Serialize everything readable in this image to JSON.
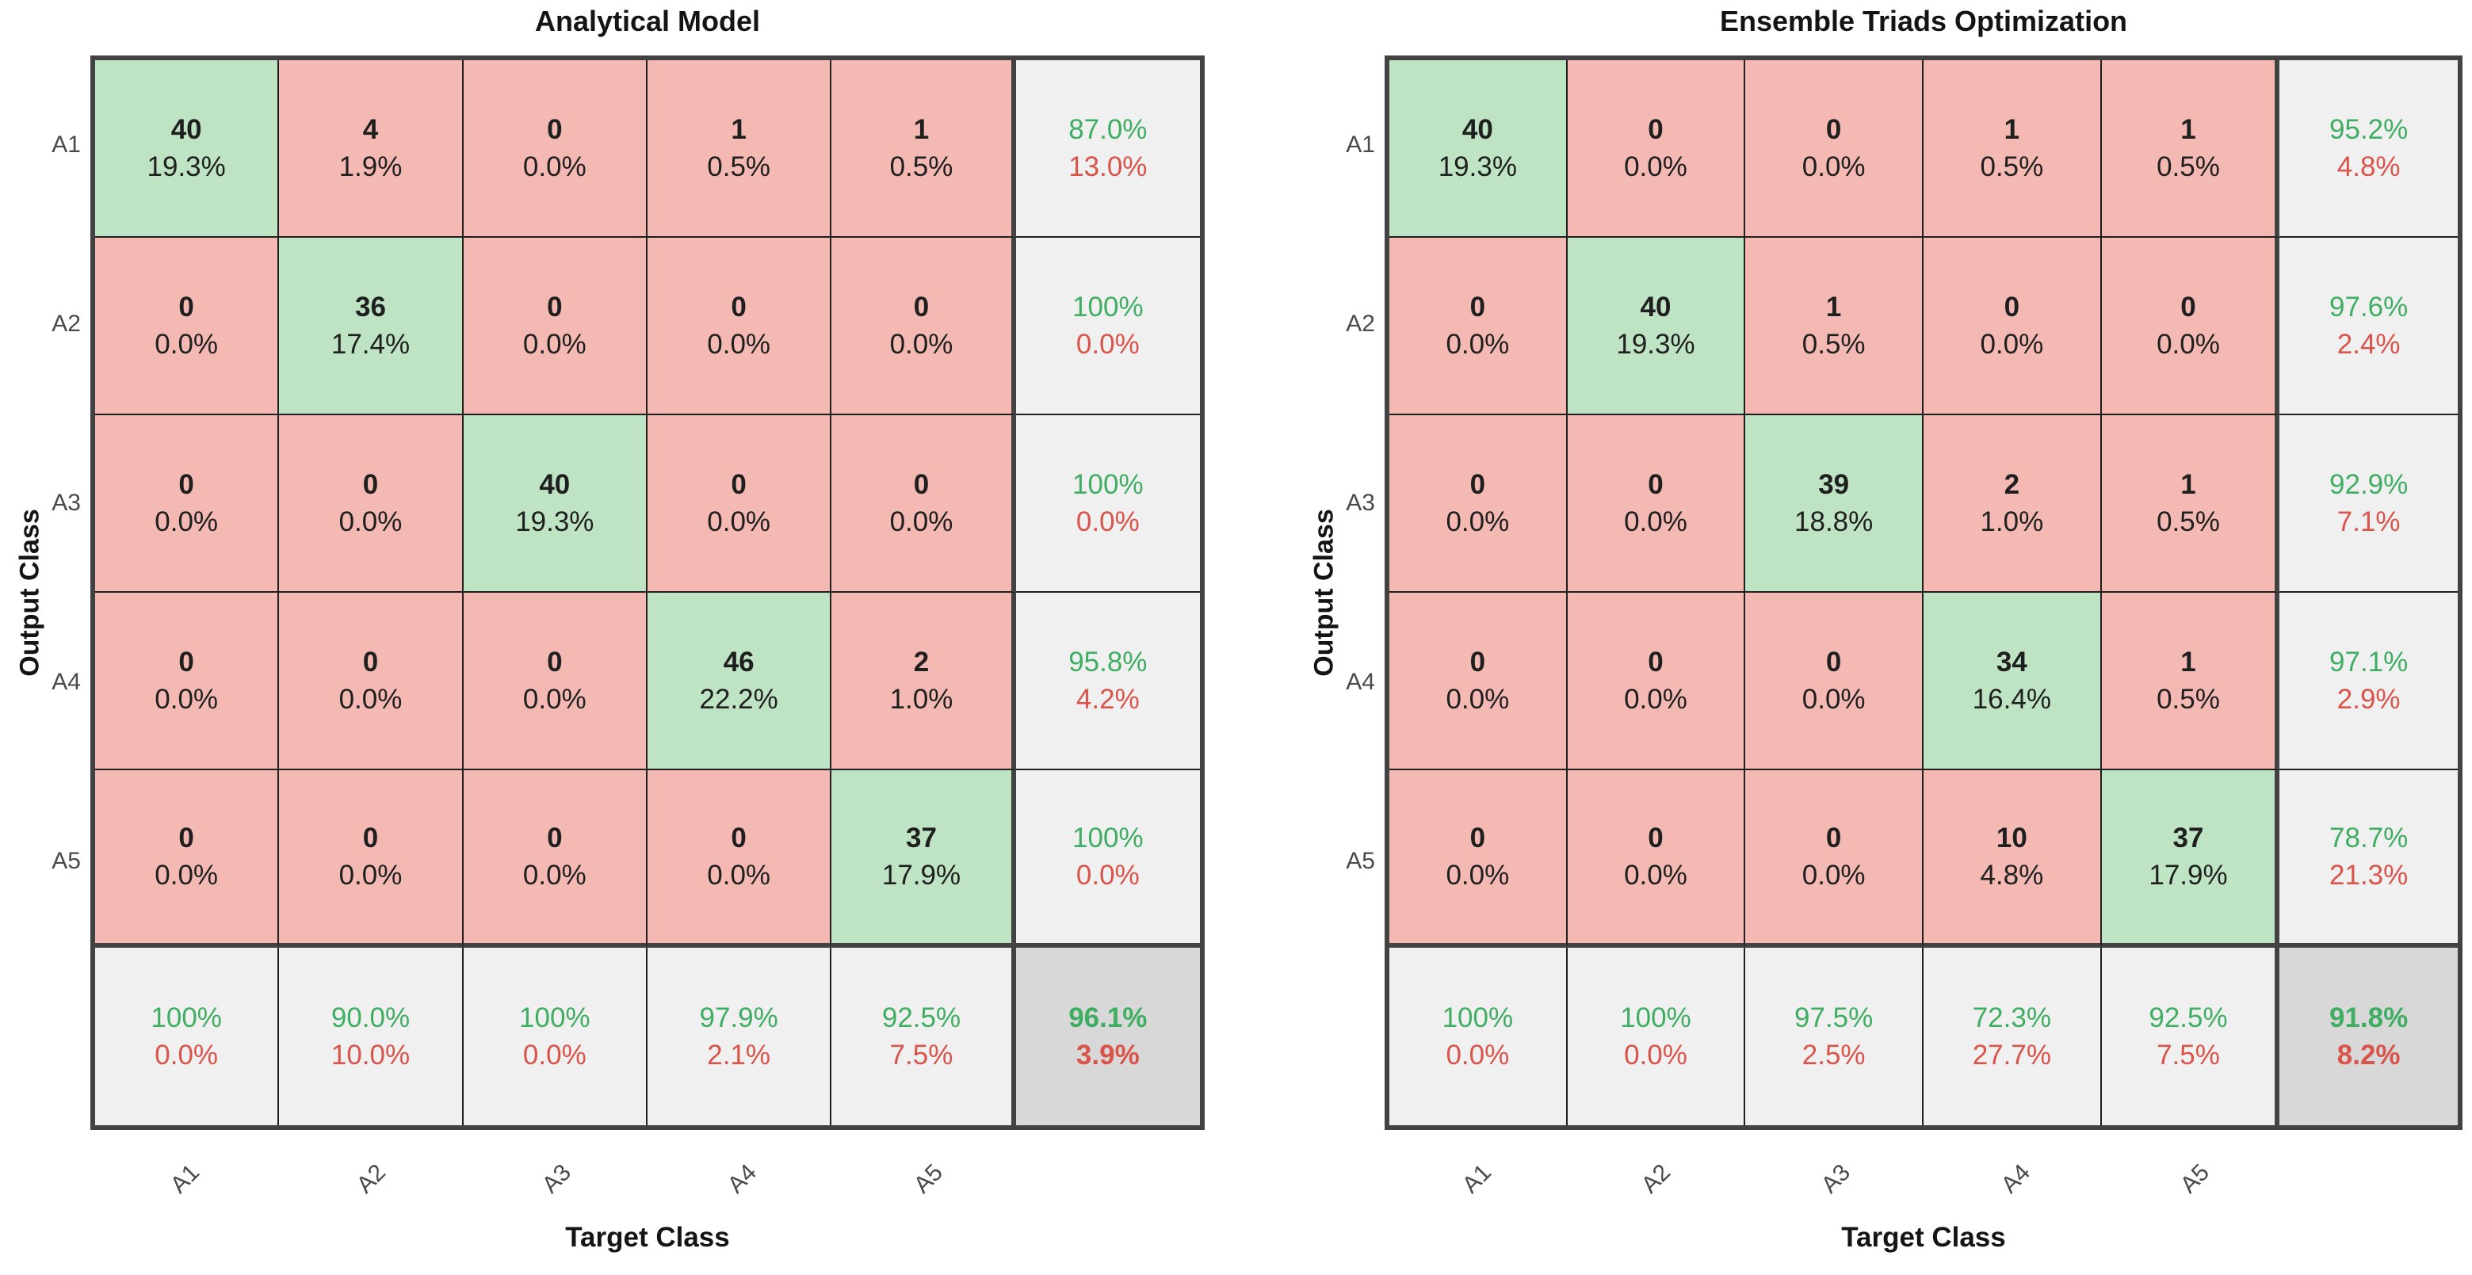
{
  "colors": {
    "correct_bg": "#bee4c4",
    "incorrect_bg": "#f4b9b2",
    "summary_bg": "#f0f0f0",
    "overall_bg": "#d8d8d8",
    "good_text": "#3fae63",
    "bad_text": "#d9544a",
    "grid_line": "#1f1f1f",
    "frame_line": "#424242"
  },
  "chart_data": [
    {
      "type": "heatmap",
      "subtype": "confusion-matrix",
      "title": "Analytical Model",
      "xlabel": "Target Class",
      "ylabel": "Output Class",
      "classes": [
        "A1",
        "A2",
        "A3",
        "A4",
        "A5"
      ],
      "matrix_counts": [
        [
          40,
          4,
          0,
          1,
          1
        ],
        [
          0,
          36,
          0,
          0,
          0
        ],
        [
          0,
          0,
          40,
          0,
          0
        ],
        [
          0,
          0,
          0,
          46,
          2
        ],
        [
          0,
          0,
          0,
          0,
          37
        ]
      ],
      "matrix_percents": [
        [
          "19.3%",
          "1.9%",
          "0.0%",
          "0.5%",
          "0.5%"
        ],
        [
          "0.0%",
          "17.4%",
          "0.0%",
          "0.0%",
          "0.0%"
        ],
        [
          "0.0%",
          "0.0%",
          "19.3%",
          "0.0%",
          "0.0%"
        ],
        [
          "0.0%",
          "0.0%",
          "0.0%",
          "22.2%",
          "1.0%"
        ],
        [
          "0.0%",
          "0.0%",
          "0.0%",
          "0.0%",
          "17.9%"
        ]
      ],
      "row_summary": [
        [
          "87.0%",
          "13.0%"
        ],
        [
          "100%",
          "0.0%"
        ],
        [
          "100%",
          "0.0%"
        ],
        [
          "95.8%",
          "4.2%"
        ],
        [
          "100%",
          "0.0%"
        ]
      ],
      "col_summary": [
        [
          "100%",
          "0.0%"
        ],
        [
          "90.0%",
          "10.0%"
        ],
        [
          "100%",
          "0.0%"
        ],
        [
          "97.9%",
          "2.1%"
        ],
        [
          "92.5%",
          "7.5%"
        ]
      ],
      "overall": [
        "96.1%",
        "3.9%"
      ]
    },
    {
      "type": "heatmap",
      "subtype": "confusion-matrix",
      "title": "Ensemble Triads Optimization",
      "xlabel": "Target Class",
      "ylabel": "Output Class",
      "classes": [
        "A1",
        "A2",
        "A3",
        "A4",
        "A5"
      ],
      "matrix_counts": [
        [
          40,
          0,
          0,
          1,
          1
        ],
        [
          0,
          40,
          1,
          0,
          0
        ],
        [
          0,
          0,
          39,
          2,
          1
        ],
        [
          0,
          0,
          0,
          34,
          1
        ],
        [
          0,
          0,
          0,
          10,
          37
        ]
      ],
      "matrix_percents": [
        [
          "19.3%",
          "0.0%",
          "0.0%",
          "0.5%",
          "0.5%"
        ],
        [
          "0.0%",
          "19.3%",
          "0.5%",
          "0.0%",
          "0.0%"
        ],
        [
          "0.0%",
          "0.0%",
          "18.8%",
          "1.0%",
          "0.5%"
        ],
        [
          "0.0%",
          "0.0%",
          "0.0%",
          "16.4%",
          "0.5%"
        ],
        [
          "0.0%",
          "0.0%",
          "0.0%",
          "4.8%",
          "17.9%"
        ]
      ],
      "row_summary": [
        [
          "95.2%",
          "4.8%"
        ],
        [
          "97.6%",
          "2.4%"
        ],
        [
          "92.9%",
          "7.1%"
        ],
        [
          "97.1%",
          "2.9%"
        ],
        [
          "78.7%",
          "21.3%"
        ]
      ],
      "col_summary": [
        [
          "100%",
          "0.0%"
        ],
        [
          "100%",
          "0.0%"
        ],
        [
          "97.5%",
          "2.5%"
        ],
        [
          "72.3%",
          "27.7%"
        ],
        [
          "92.5%",
          "7.5%"
        ]
      ],
      "overall": [
        "91.8%",
        "8.2%"
      ]
    }
  ]
}
